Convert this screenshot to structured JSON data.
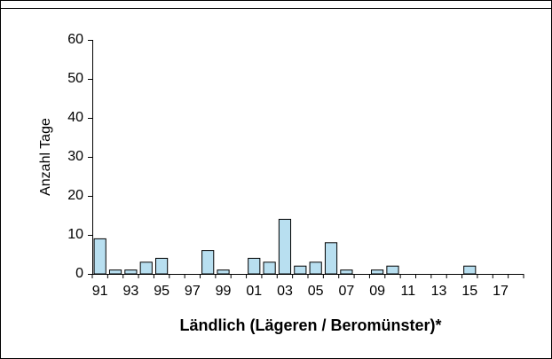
{
  "chart_data": {
    "type": "bar",
    "categories": [
      "91",
      null,
      "93",
      null,
      "95",
      null,
      "97",
      null,
      "99",
      null,
      "01",
      null,
      "03",
      null,
      "05",
      null,
      "07",
      null,
      "09",
      null,
      "11",
      null,
      "13",
      null,
      "15",
      null,
      "17",
      null
    ],
    "values": [
      9,
      1,
      1,
      3,
      4,
      0,
      0,
      6,
      1,
      0,
      4,
      3,
      14,
      2,
      3,
      8,
      1,
      0,
      1,
      2,
      0,
      0,
      0,
      0,
      2,
      0,
      0,
      0
    ],
    "color": "#b8dff0",
    "ylabel": "Anzahl Tage",
    "xlabel": "Ländlich (Lägeren / Beromünster)*",
    "ylim": [
      0,
      60
    ],
    "yticks": [
      0,
      10,
      20,
      30,
      40,
      50,
      60
    ],
    "grid": false
  }
}
